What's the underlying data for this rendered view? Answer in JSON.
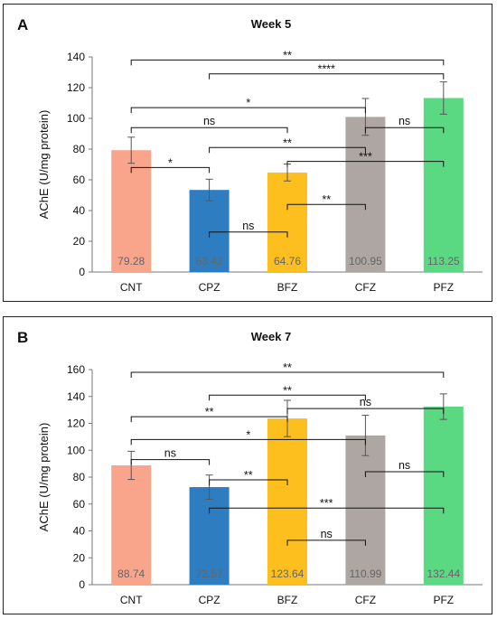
{
  "chart_data": [
    {
      "type": "bar",
      "panel": "A",
      "title": "Week 5",
      "ylabel": "AChE (U/mg protein)",
      "xlabel": "",
      "ylim": [
        0,
        140
      ],
      "yticks": [
        0,
        20,
        40,
        60,
        80,
        100,
        120,
        140
      ],
      "categories": [
        "CNT",
        "CPZ",
        "BFZ",
        "CFZ",
        "PFZ"
      ],
      "values": [
        79.28,
        53.42,
        64.76,
        100.95,
        113.25
      ],
      "value_labels": [
        "79.28",
        "53.42",
        "64.76",
        "100.95",
        "113.25"
      ],
      "error": [
        8.5,
        7.0,
        5.5,
        12.0,
        10.5
      ],
      "colors": [
        "#f8a58c",
        "#2e7dc0",
        "#fdbf1d",
        "#ada6a3",
        "#5bd882"
      ],
      "grid": false,
      "comparisons": [
        {
          "from": "CNT",
          "to": "PFZ",
          "y": 138,
          "label": "**"
        },
        {
          "from": "CPZ",
          "to": "PFZ",
          "y": 129,
          "label": "****"
        },
        {
          "from": "CNT",
          "to": "CFZ",
          "y": 107,
          "label": "*"
        },
        {
          "from": "CNT",
          "to": "BFZ",
          "y": 94,
          "label": "ns"
        },
        {
          "from": "CFZ",
          "to": "PFZ",
          "y": 94,
          "label": "ns"
        },
        {
          "from": "CPZ",
          "to": "CFZ",
          "y": 81,
          "label": "**"
        },
        {
          "from": "BFZ",
          "to": "PFZ",
          "y": 72,
          "label": "***"
        },
        {
          "from": "CNT",
          "to": "CPZ",
          "y": 68,
          "label": "*"
        },
        {
          "from": "BFZ",
          "to": "CFZ",
          "y": 44,
          "label": "**"
        },
        {
          "from": "CPZ",
          "to": "BFZ",
          "y": 26,
          "label": "ns"
        }
      ]
    },
    {
      "type": "bar",
      "panel": "B",
      "title": "Week 7",
      "ylabel": "AChE (U/mg protein)",
      "xlabel": "",
      "ylim": [
        0,
        160
      ],
      "yticks": [
        0,
        20,
        40,
        60,
        80,
        100,
        120,
        140,
        160
      ],
      "categories": [
        "CNT",
        "CPZ",
        "BFZ",
        "CFZ",
        "PFZ"
      ],
      "values": [
        88.74,
        72.57,
        123.64,
        110.99,
        132.44
      ],
      "value_labels": [
        "88.74",
        "72.57",
        "123.64",
        "110.99",
        "132.44"
      ],
      "error": [
        10.5,
        9.0,
        13.5,
        15.0,
        9.5
      ],
      "colors": [
        "#f8a58c",
        "#2e7dc0",
        "#fdbf1d",
        "#ada6a3",
        "#5bd882"
      ],
      "grid": false,
      "comparisons": [
        {
          "from": "CNT",
          "to": "PFZ",
          "y": 158,
          "label": "**"
        },
        {
          "from": "CPZ",
          "to": "CFZ",
          "y": 141,
          "label": "**"
        },
        {
          "from": "CNT",
          "to": "BFZ",
          "y": 125,
          "label": "**"
        },
        {
          "from": "BFZ",
          "to": "PFZ",
          "y": 131,
          "label": "ns"
        },
        {
          "from": "CNT",
          "to": "CFZ",
          "y": 108,
          "label": "*"
        },
        {
          "from": "CNT",
          "to": "CPZ",
          "y": 93,
          "label": "ns"
        },
        {
          "from": "CFZ",
          "to": "PFZ",
          "y": 84,
          "label": "ns"
        },
        {
          "from": "CPZ",
          "to": "BFZ",
          "y": 78,
          "label": "**"
        },
        {
          "from": "CPZ",
          "to": "PFZ",
          "y": 57,
          "label": "***"
        },
        {
          "from": "BFZ",
          "to": "CFZ",
          "y": 33,
          "label": "ns"
        }
      ]
    }
  ]
}
